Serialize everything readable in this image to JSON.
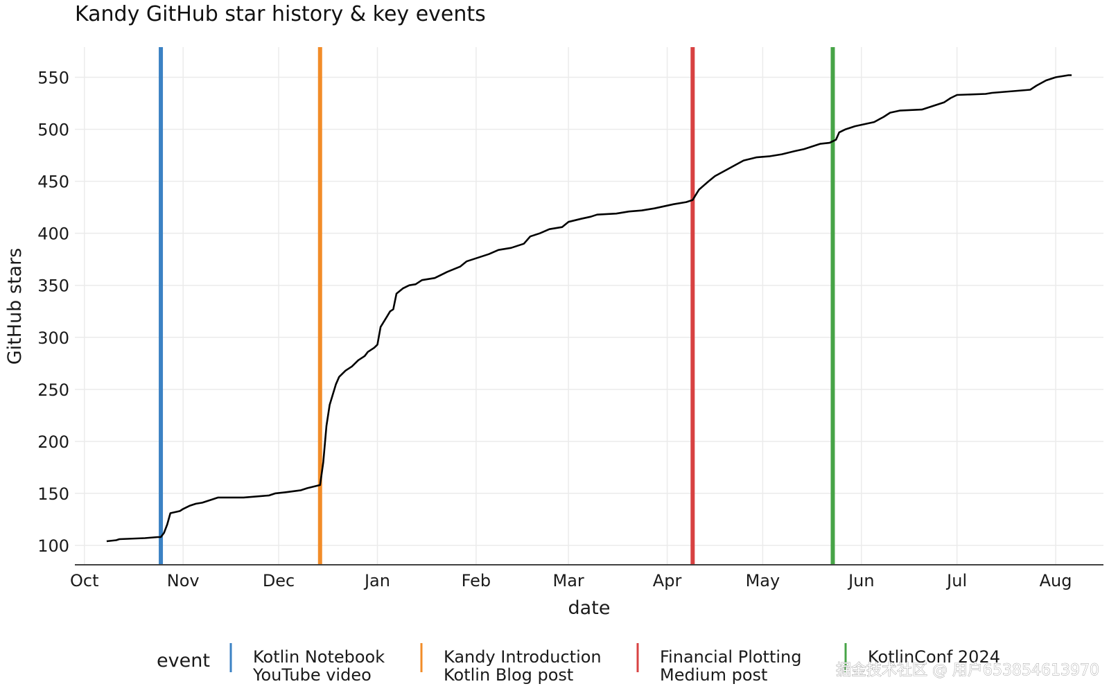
{
  "chart_data": {
    "type": "line",
    "title": "Kandy GitHub star history & key events",
    "xlabel": "date",
    "ylabel": "GitHub stars",
    "x_axis_kind": "date",
    "xlim": [
      "2023-09-28",
      "2024-08-16"
    ],
    "ylim": [
      82,
      579
    ],
    "x_ticks": [
      {
        "date": "2023-10-01",
        "label": "Oct"
      },
      {
        "date": "2023-11-01",
        "label": "Nov"
      },
      {
        "date": "2023-12-01",
        "label": "Dec"
      },
      {
        "date": "2024-01-01",
        "label": "Jan"
      },
      {
        "date": "2024-02-01",
        "label": "Feb"
      },
      {
        "date": "2024-03-01",
        "label": "Mar"
      },
      {
        "date": "2024-04-01",
        "label": "Apr"
      },
      {
        "date": "2024-05-01",
        "label": "May"
      },
      {
        "date": "2024-06-01",
        "label": "Jun"
      },
      {
        "date": "2024-07-01",
        "label": "Jul"
      },
      {
        "date": "2024-08-01",
        "label": "Aug"
      }
    ],
    "y_ticks": [
      100,
      150,
      200,
      250,
      300,
      350,
      400,
      450,
      500,
      550
    ],
    "grid": true,
    "legend_position": "bottom",
    "legend_title": "event",
    "series": [
      {
        "color": "#000000",
        "points": [
          [
            "2023-10-08",
            104
          ],
          [
            "2023-10-11",
            105
          ],
          [
            "2023-10-12",
            106
          ],
          [
            "2023-10-20",
            107
          ],
          [
            "2023-10-24",
            108
          ],
          [
            "2023-10-25",
            108
          ],
          [
            "2023-10-26",
            112
          ],
          [
            "2023-10-27",
            120
          ],
          [
            "2023-10-28",
            131
          ],
          [
            "2023-10-31",
            133
          ],
          [
            "2023-11-01",
            135
          ],
          [
            "2023-11-03",
            138
          ],
          [
            "2023-11-05",
            140
          ],
          [
            "2023-11-07",
            141
          ],
          [
            "2023-11-10",
            144
          ],
          [
            "2023-11-12",
            146
          ],
          [
            "2023-11-20",
            146
          ],
          [
            "2023-11-28",
            148
          ],
          [
            "2023-11-30",
            150
          ],
          [
            "2023-12-03",
            151
          ],
          [
            "2023-12-08",
            153
          ],
          [
            "2023-12-10",
            155
          ],
          [
            "2023-12-14",
            158
          ],
          [
            "2023-12-15",
            180
          ],
          [
            "2023-12-16",
            215
          ],
          [
            "2023-12-17",
            235
          ],
          [
            "2023-12-19",
            255
          ],
          [
            "2023-12-20",
            262
          ],
          [
            "2023-12-22",
            268
          ],
          [
            "2023-12-24",
            272
          ],
          [
            "2023-12-26",
            278
          ],
          [
            "2023-12-28",
            282
          ],
          [
            "2023-12-29",
            286
          ],
          [
            "2023-12-31",
            290
          ],
          [
            "2024-01-01",
            293
          ],
          [
            "2024-01-02",
            310
          ],
          [
            "2024-01-04",
            320
          ],
          [
            "2024-01-05",
            325
          ],
          [
            "2024-01-06",
            327
          ],
          [
            "2024-01-07",
            342
          ],
          [
            "2024-01-09",
            347
          ],
          [
            "2024-01-11",
            350
          ],
          [
            "2024-01-13",
            351
          ],
          [
            "2024-01-15",
            355
          ],
          [
            "2024-01-19",
            357
          ],
          [
            "2024-01-23",
            363
          ],
          [
            "2024-01-27",
            368
          ],
          [
            "2024-01-29",
            373
          ],
          [
            "2024-02-02",
            377
          ],
          [
            "2024-02-05",
            380
          ],
          [
            "2024-02-08",
            384
          ],
          [
            "2024-02-12",
            386
          ],
          [
            "2024-02-16",
            390
          ],
          [
            "2024-02-18",
            397
          ],
          [
            "2024-02-21",
            400
          ],
          [
            "2024-02-24",
            404
          ],
          [
            "2024-02-28",
            406
          ],
          [
            "2024-03-01",
            411
          ],
          [
            "2024-03-05",
            414
          ],
          [
            "2024-03-08",
            416
          ],
          [
            "2024-03-10",
            418
          ],
          [
            "2024-03-16",
            419
          ],
          [
            "2024-03-20",
            421
          ],
          [
            "2024-03-24",
            422
          ],
          [
            "2024-03-28",
            424
          ],
          [
            "2024-03-31",
            426
          ],
          [
            "2024-04-03",
            428
          ],
          [
            "2024-04-07",
            430
          ],
          [
            "2024-04-09",
            432
          ],
          [
            "2024-04-11",
            442
          ],
          [
            "2024-04-14",
            450
          ],
          [
            "2024-04-16",
            455
          ],
          [
            "2024-04-19",
            460
          ],
          [
            "2024-04-22",
            465
          ],
          [
            "2024-04-25",
            470
          ],
          [
            "2024-04-29",
            473
          ],
          [
            "2024-05-03",
            474
          ],
          [
            "2024-05-07",
            476
          ],
          [
            "2024-05-11",
            479
          ],
          [
            "2024-05-14",
            481
          ],
          [
            "2024-05-17",
            484
          ],
          [
            "2024-05-19",
            486
          ],
          [
            "2024-05-22",
            487
          ],
          [
            "2024-05-24",
            490
          ],
          [
            "2024-05-25",
            497
          ],
          [
            "2024-05-27",
            500
          ],
          [
            "2024-05-30",
            503
          ],
          [
            "2024-06-02",
            505
          ],
          [
            "2024-06-05",
            507
          ],
          [
            "2024-06-08",
            512
          ],
          [
            "2024-06-10",
            516
          ],
          [
            "2024-06-13",
            518
          ],
          [
            "2024-06-20",
            519
          ],
          [
            "2024-06-24",
            523
          ],
          [
            "2024-06-27",
            526
          ],
          [
            "2024-06-29",
            530
          ],
          [
            "2024-07-01",
            533
          ],
          [
            "2024-07-10",
            534
          ],
          [
            "2024-07-12",
            535
          ],
          [
            "2024-07-20",
            537
          ],
          [
            "2024-07-24",
            538
          ],
          [
            "2024-07-26",
            542
          ],
          [
            "2024-07-29",
            547
          ],
          [
            "2024-08-01",
            550
          ],
          [
            "2024-08-03",
            551
          ],
          [
            "2024-08-05",
            552
          ],
          [
            "2024-08-06",
            552
          ]
        ]
      }
    ],
    "events": [
      {
        "date": "2023-10-25",
        "label_line1": "Kotlin Notebook",
        "label_line2": "YouTube video",
        "color": "#3b82c4"
      },
      {
        "date": "2023-12-14",
        "label_line1": "Kandy Introduction",
        "label_line2": "Kotlin Blog post",
        "color": "#f28c28"
      },
      {
        "date": "2024-04-09",
        "label_line1": "Financial Plotting",
        "label_line2": "Medium post",
        "color": "#d84242"
      },
      {
        "date": "2024-05-23",
        "label_line1": "KotlinConf 2024",
        "label_line2": "",
        "color": "#47a447"
      }
    ]
  },
  "watermark": "掘金技术社区 @ 用户653854613970"
}
